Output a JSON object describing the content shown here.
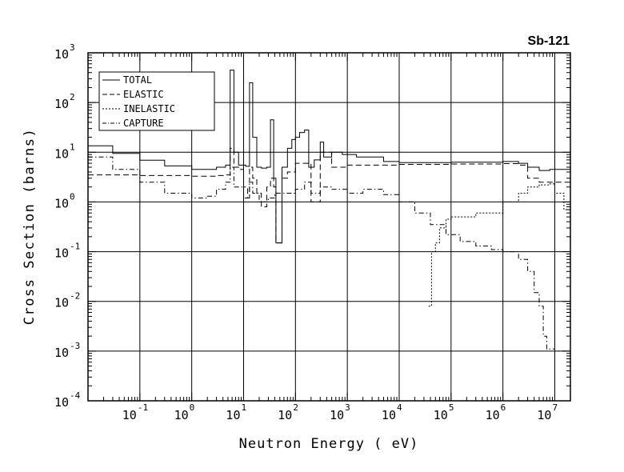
{
  "chart_data": {
    "type": "line",
    "title": "Sb-121",
    "xlabel": "Neutron Energy ( eV)",
    "ylabel": "Cross Section (barns)",
    "x_scale": "log",
    "y_scale": "log",
    "xlim": [
      0.01,
      20000000
    ],
    "ylim": [
      0.0001,
      1000
    ],
    "grid": true,
    "legend_position": "top-left",
    "x_ticks": [
      {
        "base": "10",
        "exp": "-1",
        "value": 0.1
      },
      {
        "base": "10",
        "exp": "0",
        "value": 1
      },
      {
        "base": "10",
        "exp": "1",
        "value": 10
      },
      {
        "base": "10",
        "exp": "2",
        "value": 100
      },
      {
        "base": "10",
        "exp": "3",
        "value": 1000
      },
      {
        "base": "10",
        "exp": "4",
        "value": 10000
      },
      {
        "base": "10",
        "exp": "5",
        "value": 100000
      },
      {
        "base": "10",
        "exp": "6",
        "value": 1000000
      },
      {
        "base": "10",
        "exp": "7",
        "value": 10000000
      }
    ],
    "y_ticks": [
      {
        "base": "10",
        "exp": "3",
        "value": 1000
      },
      {
        "base": "10",
        "exp": "2",
        "value": 100
      },
      {
        "base": "10",
        "exp": "1",
        "value": 10
      },
      {
        "base": "10",
        "exp": "0",
        "value": 1
      },
      {
        "base": "10",
        "exp": "-1",
        "value": 0.1
      },
      {
        "base": "10",
        "exp": "-2",
        "value": 0.01
      },
      {
        "base": "10",
        "exp": "-3",
        "value": 0.001
      },
      {
        "base": "10",
        "exp": "-4",
        "value": 0.0001
      }
    ],
    "series": [
      {
        "name": "TOTAL",
        "style": "solid",
        "points": [
          [
            0.01,
            13.5
          ],
          [
            0.03,
            9.5
          ],
          [
            0.1,
            6.9
          ],
          [
            0.3,
            5.3
          ],
          [
            1,
            4.5
          ],
          [
            3,
            5
          ],
          [
            4.5,
            5.5
          ],
          [
            5.5,
            450
          ],
          [
            6.5,
            10
          ],
          [
            8,
            5.5
          ],
          [
            11,
            5.2
          ],
          [
            13,
            250
          ],
          [
            15,
            20
          ],
          [
            18,
            5
          ],
          [
            22,
            4.8
          ],
          [
            28,
            5
          ],
          [
            33,
            45
          ],
          [
            38,
            3
          ],
          [
            42,
            0.15
          ],
          [
            50,
            0.15
          ],
          [
            55,
            5
          ],
          [
            70,
            12
          ],
          [
            85,
            18
          ],
          [
            100,
            20
          ],
          [
            120,
            25
          ],
          [
            150,
            28
          ],
          [
            180,
            5
          ],
          [
            230,
            7
          ],
          [
            300,
            16
          ],
          [
            350,
            8
          ],
          [
            500,
            10
          ],
          [
            800,
            9
          ],
          [
            1500,
            8
          ],
          [
            5000,
            6.5
          ],
          [
            10000,
            6.2
          ],
          [
            100000,
            6.3
          ],
          [
            1000000,
            6.5
          ],
          [
            2000000,
            6
          ],
          [
            3000000,
            5
          ],
          [
            5000000,
            4.3
          ],
          [
            8000000,
            4.5
          ],
          [
            12000000,
            4.5
          ],
          [
            20000000,
            4
          ]
        ]
      },
      {
        "name": "ELASTIC",
        "style": "dashed",
        "points": [
          [
            0.01,
            3.5
          ],
          [
            0.1,
            3.4
          ],
          [
            1,
            3.3
          ],
          [
            3,
            3.4
          ],
          [
            4.5,
            3.5
          ],
          [
            5.5,
            12
          ],
          [
            6.5,
            5
          ],
          [
            8,
            4.5
          ],
          [
            10,
            2
          ],
          [
            12,
            1.2
          ],
          [
            13,
            5
          ],
          [
            15,
            3
          ],
          [
            18,
            1.5
          ],
          [
            22,
            0.8
          ],
          [
            28,
            2
          ],
          [
            33,
            3
          ],
          [
            38,
            2
          ],
          [
            42,
            0.15
          ],
          [
            50,
            0.15
          ],
          [
            55,
            3
          ],
          [
            70,
            4
          ],
          [
            100,
            6
          ],
          [
            150,
            6
          ],
          [
            200,
            1
          ],
          [
            300,
            10
          ],
          [
            500,
            5
          ],
          [
            1000,
            5.5
          ],
          [
            10000,
            5.7
          ],
          [
            100000,
            5.8
          ],
          [
            1000000,
            5.9
          ],
          [
            2000000,
            5.5
          ],
          [
            3000000,
            3
          ],
          [
            5000000,
            2.5
          ],
          [
            10000000,
            2.5
          ],
          [
            20000000,
            2
          ]
        ]
      },
      {
        "name": "INELASTIC",
        "style": "dotted",
        "points": [
          [
            37000,
            0.008
          ],
          [
            40000,
            0.008
          ],
          [
            42000,
            0.1
          ],
          [
            50000,
            0.15
          ],
          [
            60000,
            0.3
          ],
          [
            80000,
            0.45
          ],
          [
            100000,
            0.5
          ],
          [
            300000,
            0.6
          ],
          [
            1000000,
            1
          ],
          [
            2000000,
            1.5
          ],
          [
            3000000,
            2
          ],
          [
            5000000,
            2.2
          ],
          [
            8000000,
            2.3
          ],
          [
            10000000,
            1.5
          ],
          [
            15000000,
            0.7
          ],
          [
            20000000,
            0.28
          ]
        ]
      },
      {
        "name": "CAPTURE",
        "style": "dash-dot",
        "points": [
          [
            0.01,
            8
          ],
          [
            0.03,
            4.5
          ],
          [
            0.1,
            2.5
          ],
          [
            0.3,
            1.5
          ],
          [
            1,
            1.2
          ],
          [
            2,
            1.3
          ],
          [
            3,
            1.8
          ],
          [
            4.5,
            2.5
          ],
          [
            5.5,
            5
          ],
          [
            6.5,
            2
          ],
          [
            10,
            1.2
          ],
          [
            13,
            2.5
          ],
          [
            15,
            1.5
          ],
          [
            20,
            1
          ],
          [
            30,
            1.2
          ],
          [
            40,
            1.5
          ],
          [
            60,
            1.5
          ],
          [
            100,
            1.8
          ],
          [
            150,
            2.5
          ],
          [
            200,
            1.5
          ],
          [
            300,
            2
          ],
          [
            500,
            1.8
          ],
          [
            1000,
            1.5
          ],
          [
            2000,
            1.8
          ],
          [
            5000,
            1.4
          ],
          [
            10000,
            1
          ],
          [
            20000,
            0.6
          ],
          [
            40000,
            0.35
          ],
          [
            80000,
            0.22
          ],
          [
            150000,
            0.16
          ],
          [
            300000,
            0.13
          ],
          [
            600000,
            0.11
          ],
          [
            1000000,
            0.1
          ],
          [
            2000000,
            0.07
          ],
          [
            3000000,
            0.04
          ],
          [
            4000000,
            0.015
          ],
          [
            5000000,
            0.008
          ],
          [
            6000000,
            0.002
          ],
          [
            7000000,
            0.0011
          ],
          [
            10000000,
            0.001
          ],
          [
            20000000,
            0.0009
          ]
        ]
      }
    ]
  }
}
